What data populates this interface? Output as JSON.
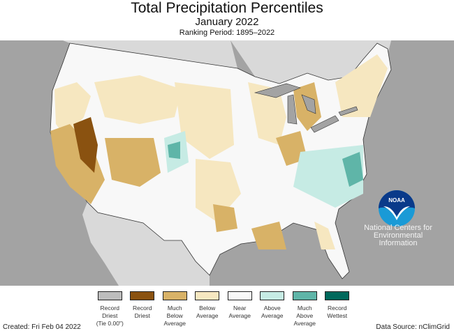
{
  "header": {
    "title": "Total Precipitation Percentiles",
    "subtitle": "January 2022",
    "ranking_period": "Ranking Period: 1895–2022"
  },
  "legend": [
    {
      "label": "Record\nDriest\n(Tie 0.00\")",
      "color": "#bdbdbd"
    },
    {
      "label": "Record\nDriest",
      "color": "#8a5210"
    },
    {
      "label": "Much\nBelow\nAverage",
      "color": "#d8b267"
    },
    {
      "label": "Below\nAverage",
      "color": "#f6e7c0"
    },
    {
      "label": "Near\nAverage",
      "color": "#f8f8f8"
    },
    {
      "label": "Above\nAverage",
      "color": "#c6ebe4"
    },
    {
      "label": "Much\nAbove\nAverage",
      "color": "#5fb5a8"
    },
    {
      "label": "Record\nWettest",
      "color": "#00695c"
    }
  ],
  "logo": {
    "name": "NOAA",
    "org": "National Centers for\nEnvironmental\nInformation"
  },
  "footer": {
    "created": "Created: Fri Feb 04 2022",
    "source": "Data Source: nClimGrid"
  }
}
